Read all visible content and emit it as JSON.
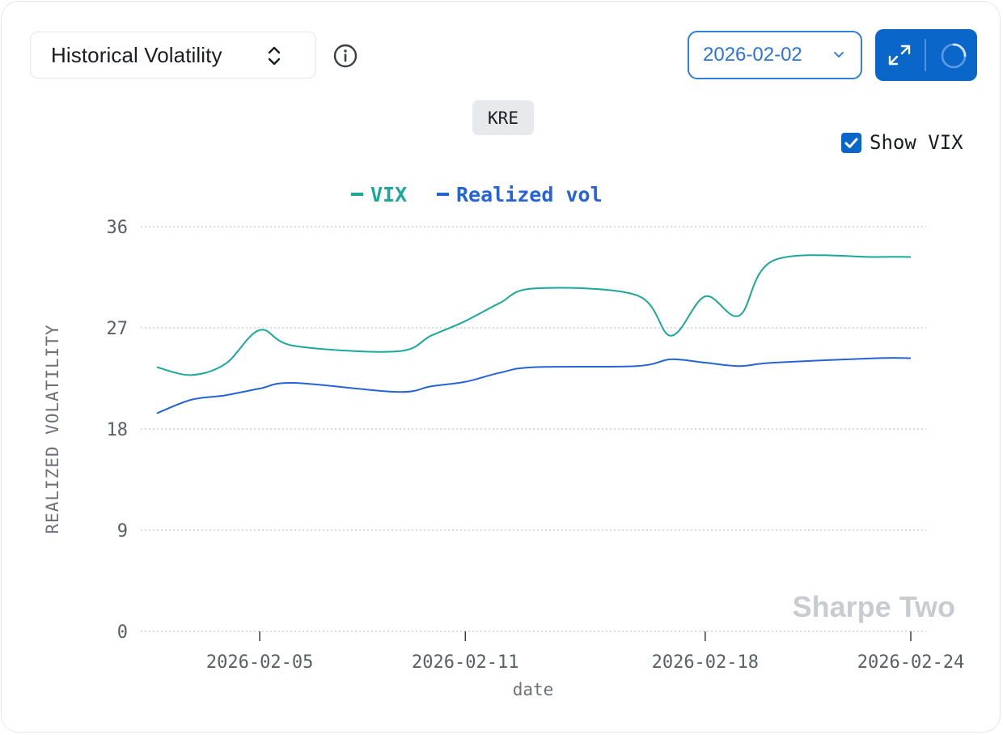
{
  "controls": {
    "metric_label": "Historical Volatility",
    "date_value": "2026-02-02",
    "ticker": "KRE",
    "show_vix_label": "Show VIX",
    "show_vix_checked": true,
    "watermark": "Sharpe Two"
  },
  "icons": {
    "metric_chevron": "chevrons-up-down-icon",
    "info": "info-icon",
    "date_chevron": "chevron-down-icon",
    "expand": "expand-icon",
    "loading": "loading-spinner-icon",
    "checkbox": "check-icon"
  },
  "colors": {
    "vix": "#1aa89a",
    "realized": "#2563d8",
    "accent": "#0a66c8",
    "grid": "#c4c7cc",
    "watermark": "#c8ccd1"
  },
  "chart_data": {
    "type": "line",
    "title": "",
    "xlabel": "date",
    "ylabel": "REALIZED VOLATILITY",
    "ylim": [
      0,
      36
    ],
    "yticks": [
      0,
      9,
      18,
      27,
      36
    ],
    "xticks": [
      "2026-02-05",
      "2026-02-11",
      "2026-02-18",
      "2026-02-24"
    ],
    "grid": true,
    "legend": "top-center",
    "x": [
      "2026-02-02",
      "2026-02-03",
      "2026-02-04",
      "2026-02-05",
      "2026-02-06",
      "2026-02-09",
      "2026-02-10",
      "2026-02-11",
      "2026-02-12",
      "2026-02-13",
      "2026-02-16",
      "2026-02-17",
      "2026-02-18",
      "2026-02-19",
      "2026-02-20",
      "2026-02-23",
      "2026-02-24"
    ],
    "series": [
      {
        "name": "VIX",
        "values": [
          23.5,
          22.8,
          23.8,
          26.8,
          25.4,
          24.9,
          26.3,
          27.6,
          29.2,
          30.5,
          29.9,
          26.3,
          29.8,
          28.1,
          33.0,
          33.3,
          33.3
        ]
      },
      {
        "name": "Realized vol",
        "values": [
          19.4,
          20.6,
          21.0,
          21.6,
          22.1,
          21.3,
          21.8,
          22.2,
          23.0,
          23.5,
          23.6,
          24.2,
          23.9,
          23.6,
          23.9,
          24.3,
          24.3
        ]
      }
    ]
  }
}
